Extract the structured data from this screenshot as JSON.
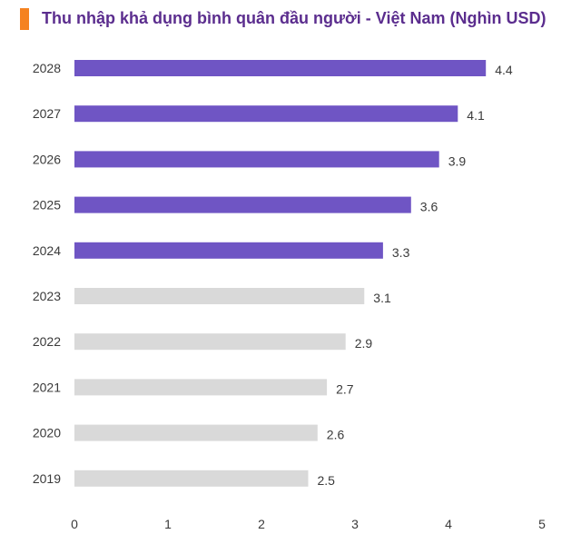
{
  "header": {
    "title": "Thu nhập khả dụng bình quân đầu người - Việt Nam (Nghìn USD)"
  },
  "colors": {
    "accent": "#f58220",
    "title": "#5b2d8e",
    "forecast_bar": "#6f55c4",
    "actual_bar": "#d9d9d9",
    "text": "#3a3a3a"
  },
  "chart_data": {
    "type": "bar",
    "orientation": "horizontal",
    "title": "Thu nhập khả dụng bình quân đầu người - Việt Nam (Nghìn USD)",
    "categories": [
      "2028",
      "2027",
      "2026",
      "2025",
      "2024",
      "2023",
      "2022",
      "2021",
      "2020",
      "2019"
    ],
    "values": [
      4.4,
      4.1,
      3.9,
      3.6,
      3.3,
      3.1,
      2.9,
      2.7,
      2.6,
      2.5
    ],
    "value_labels": [
      "4.4",
      "4.1",
      "3.9",
      "3.6",
      "3.3",
      "3.1",
      "2.9",
      "2.7",
      "2.6",
      "2.5"
    ],
    "highlighted": [
      true,
      true,
      true,
      true,
      true,
      false,
      false,
      false,
      false,
      false
    ],
    "xlim": [
      0,
      5
    ],
    "xticks": [
      "0",
      "1",
      "2",
      "3",
      "4",
      "5"
    ],
    "grid": false,
    "legend": "none"
  }
}
